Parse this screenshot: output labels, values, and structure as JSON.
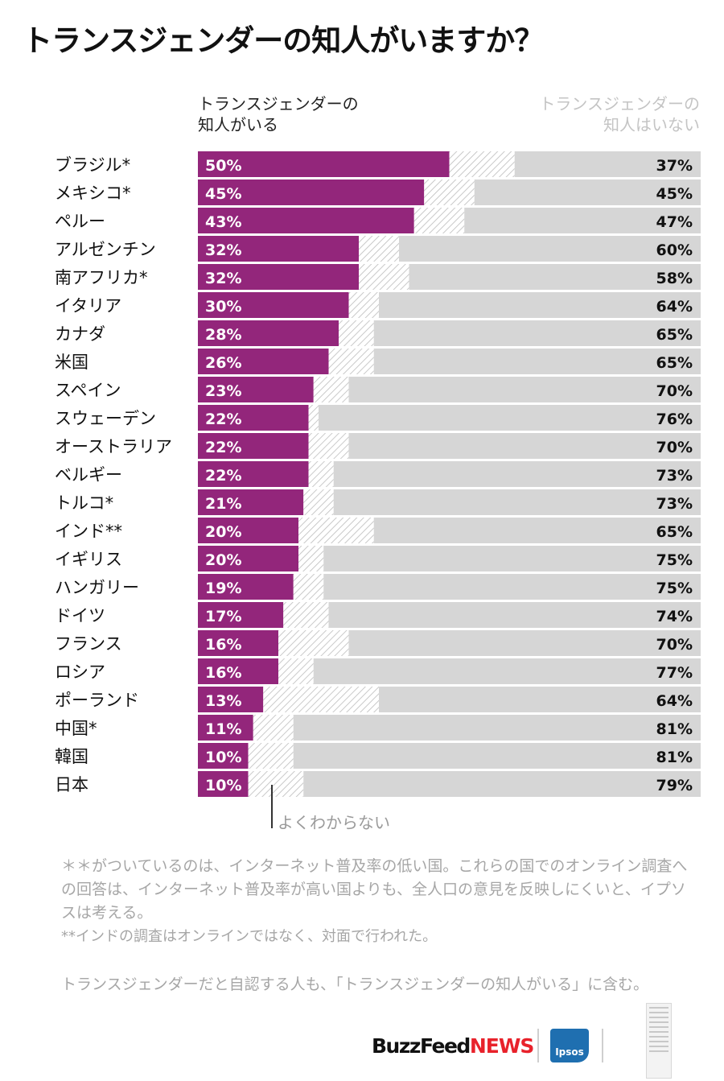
{
  "title": "トランスジェンダーの知人がいますか？",
  "column_headers": {
    "known": [
      "トランスジェンダーの",
      "知人がいる"
    ],
    "unknown": [
      "トランスジェンダーの",
      "知人はいない"
    ]
  },
  "unsure_label": "よくわからない",
  "notes": [
    "＊＊がついているのは、インターネット普及率の低い国。これらの国でのオンライン調査への回答は、インターネット普及率が高い国よりも、全人口の意見を反映しにくいと、イプソスは考える。",
    "**インドの調査はオンラインではなく、対面で行われた。"
  ],
  "source_note": "トランスジェンダーだと自認する人も、「トランスジェンダーの知人がいる」に含む。",
  "logos": {
    "buzzfeed": "BuzzFeed",
    "news": "NEWS",
    "ipsos": "Ipsos"
  },
  "colors": {
    "known": "#93267b",
    "unknown": "#d6d6d6",
    "unsure_hatch": "#bdbdbd"
  },
  "chart_data": {
    "type": "bar",
    "orientation": "horizontal",
    "stacked": true,
    "categories": [
      "ブラジル*",
      "メキシコ*",
      "ペルー",
      "アルゼンチン",
      "南アフリカ*",
      "イタリア",
      "カナダ",
      "米国",
      "スペイン",
      "スウェーデン",
      "オーストラリア",
      "ベルギー",
      "トルコ*",
      "インド**",
      "イギリス",
      "ハンガリー",
      "ドイツ",
      "フランス",
      "ロシア",
      "ポーランド",
      "中国*",
      "韓国",
      "日本"
    ],
    "series": [
      {
        "name": "トランスジェンダーの知人がいる",
        "values": [
          50,
          45,
          43,
          32,
          32,
          30,
          28,
          26,
          23,
          22,
          22,
          22,
          21,
          20,
          20,
          19,
          17,
          16,
          16,
          13,
          11,
          10,
          10
        ]
      },
      {
        "name": "よくわからない",
        "values": [
          13,
          10,
          10,
          8,
          10,
          6,
          7,
          9,
          7,
          2,
          8,
          5,
          6,
          15,
          5,
          6,
          9,
          14,
          7,
          23,
          8,
          9,
          11
        ]
      },
      {
        "name": "トランスジェンダーの知人はいない",
        "values": [
          37,
          45,
          47,
          60,
          58,
          64,
          65,
          65,
          70,
          76,
          70,
          73,
          73,
          65,
          75,
          75,
          74,
          70,
          77,
          64,
          81,
          81,
          79
        ]
      }
    ],
    "labels_known": [
      "50%",
      "45%",
      "43%",
      "32%",
      "32%",
      "30%",
      "28%",
      "26%",
      "23%",
      "22%",
      "22%",
      "22%",
      "21%",
      "20%",
      "20%",
      "19%",
      "17%",
      "16%",
      "16%",
      "13%",
      "11%",
      "10%",
      "10%"
    ],
    "labels_unknown": [
      "37%",
      "45%",
      "47%",
      "60%",
      "58%",
      "64%",
      "65%",
      "65%",
      "70%",
      "76%",
      "70%",
      "73%",
      "73%",
      "65%",
      "75%",
      "75%",
      "74%",
      "70%",
      "77%",
      "64%",
      "81%",
      "81%",
      "79%"
    ],
    "xlim": [
      0,
      100
    ]
  }
}
